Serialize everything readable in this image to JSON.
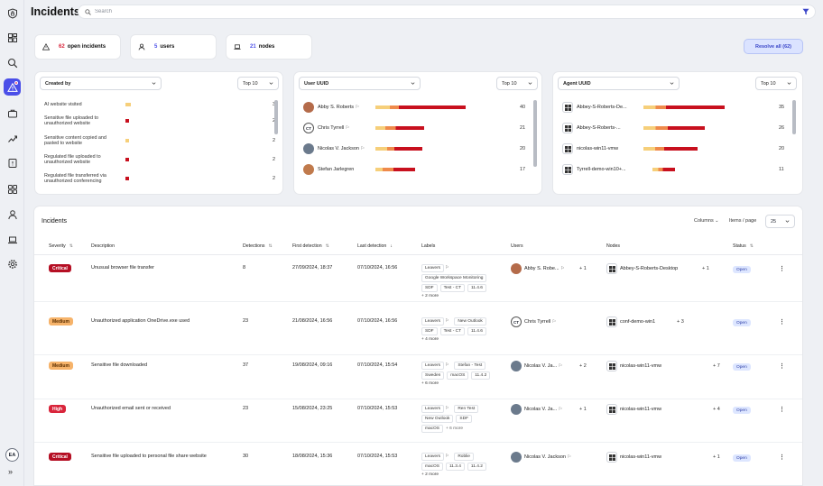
{
  "page": {
    "title": "Incidents"
  },
  "search": {
    "placeholder": "Search"
  },
  "summary": {
    "open_incidents": {
      "count": "62",
      "label": "open incidents"
    },
    "users": {
      "count": "5",
      "label": "users"
    },
    "nodes": {
      "count": "21",
      "label": "nodes"
    },
    "resolve_all": "Resolve all (62)"
  },
  "sidebar": {
    "user_initials": "EA"
  },
  "colors": {
    "accent": "#4b4fe8",
    "critical": "#b50f24",
    "high": "#d9253b",
    "medium": "#f6b36a",
    "bar_light": "#f6cf7a",
    "bar_mid": "#ef8a4b",
    "bar_dark": "#c8101e"
  },
  "panels": {
    "created_by": {
      "select": "Created by",
      "top": "Top 10",
      "items": [
        {
          "label": "AI website visited",
          "value": "3"
        },
        {
          "label": "Sensitive file uploaded to unauthorized website",
          "value": "2"
        },
        {
          "label": "Sensitive content copied and pasted to website",
          "value": "2"
        },
        {
          "label": "Regulated file uploaded to unauthorized website",
          "value": "2"
        },
        {
          "label": "Regulated file transferred via unauthorized conferencing",
          "value": "2"
        }
      ]
    },
    "user_uuid": {
      "select": "User UUID",
      "top": "Top 10",
      "items": [
        {
          "name": "Abby S. Roberts",
          "value": "40"
        },
        {
          "name": "Chris Tyrrell",
          "initials": "CT",
          "value": "21"
        },
        {
          "name": "Nicolas V. Jackson",
          "value": "20"
        },
        {
          "name": "Stefan Jarlegren",
          "value": "17"
        }
      ]
    },
    "agent_uuid": {
      "select": "Agent UUID",
      "top": "Top 10",
      "items": [
        {
          "name": "Abbey-S-Roberts-De...",
          "value": "35"
        },
        {
          "name": "Abbey-S-Roberts-...",
          "value": "26"
        },
        {
          "name": "nicolas-win11-vmw",
          "value": "20"
        },
        {
          "name": "Tyrrell-demo-win10+...",
          "value": "11"
        }
      ]
    }
  },
  "incidents": {
    "title": "Incidents",
    "columns_label": "Columns",
    "items_per_page_label": "Items / page",
    "items_per_page": "25",
    "headers": {
      "severity": "Severity",
      "description": "Description",
      "detections": "Detections",
      "first_detection": "First detection",
      "last_detection": "Last detection",
      "labels": "Labels",
      "users": "Users",
      "nodes": "Nodes",
      "status": "Status"
    },
    "rows": [
      {
        "severity": "Critical",
        "description": "Unusual browser file transfer",
        "detections": "8",
        "first": "27/09/2024, 18:37",
        "last": "07/10/2024, 16:56",
        "labels": [
          "Leavers",
          "Google Workspace Monitoring",
          "SDF",
          "Test - CT",
          "11.4.6"
        ],
        "more": "+ 2 more",
        "user": "Abby S. Robe...",
        "user_plus": "+ 1",
        "node": "Abbey-S-Roberts-Desktop",
        "node_plus": "+ 1",
        "status": "Open"
      },
      {
        "severity": "Medium",
        "description": "Unauthorized application OneDrive.exe used",
        "detections": "23",
        "first": "21/08/2024, 16:56",
        "last": "07/10/2024, 16:56",
        "labels": [
          "Leavers",
          "New Outlook",
          "SDF",
          "Test - CT",
          "11.4.6"
        ],
        "more": "+ 4 more",
        "user": "Chris Tyrrell",
        "user_initials": "CT",
        "node": "conf-demo-win1",
        "node_plus": "+ 3",
        "status": "Open"
      },
      {
        "severity": "Medium",
        "description": "Sensitive file downloaded",
        "detections": "37",
        "first": "19/08/2024, 09:16",
        "last": "07/10/2024, 15:54",
        "labels": [
          "Leavers",
          "Stefan - Test",
          "Sweden",
          "macOS",
          "11.4.2"
        ],
        "more": "+ 6 more",
        "user": "Nicolas V. Ja...",
        "user_plus": "+ 2",
        "node": "nicolas-win11-vmw",
        "node_plus": "+ 7",
        "status": "Open"
      },
      {
        "severity": "High",
        "description": "Unauthorized email sent or received",
        "detections": "23",
        "first": "15/08/2024, 23:25",
        "last": "07/10/2024, 15:53",
        "labels": [
          "Leavers",
          "Ren Test",
          "New Outlook",
          "SDF",
          "macOS"
        ],
        "more": "+ 6 more",
        "user": "Nicolas V. Ja...",
        "user_plus": "+ 1",
        "node": "nicolas-win11-vmw",
        "node_plus": "+ 4",
        "status": "Open"
      },
      {
        "severity": "Critical",
        "description": "Sensitive file uploaded to personal file share website",
        "detections": "30",
        "first": "18/08/2024, 15:36",
        "last": "07/10/2024, 15:53",
        "labels": [
          "Leavers",
          "Roblie",
          "macOS",
          "11.3.4",
          "11.4.2"
        ],
        "more": "+ 2 more",
        "user": "Nicolas V. Jackson",
        "node": "nicolas-win11-vmw",
        "node_plus": "+ 1",
        "status": "Open"
      }
    ]
  }
}
